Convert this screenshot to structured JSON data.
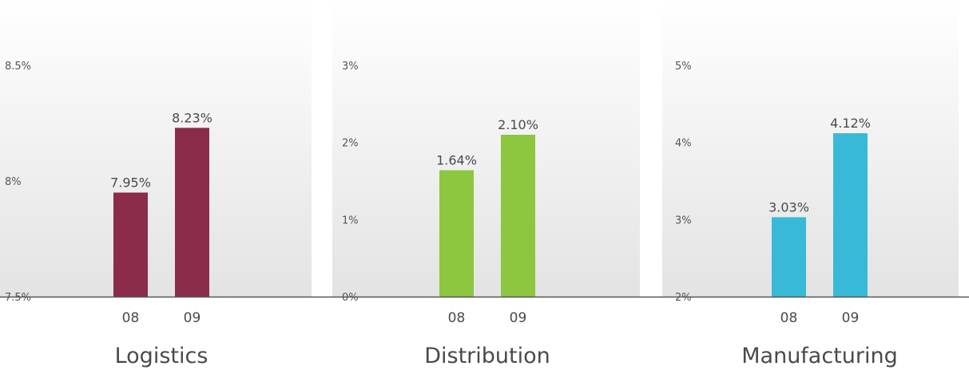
{
  "chart_data": [
    {
      "type": "bar",
      "title": "Logistics",
      "categories": [
        "08",
        "09"
      ],
      "values": [
        7.95,
        8.23
      ],
      "value_labels": [
        "7.95%",
        "8.23%"
      ],
      "yticks": [
        "7.5%",
        "8%",
        "8.5%"
      ],
      "ylim": [
        7.5,
        8.5
      ],
      "color": "#8b2c4b",
      "grid": false
    },
    {
      "type": "bar",
      "title": "Distribution",
      "categories": [
        "08",
        "09"
      ],
      "values": [
        1.64,
        2.1
      ],
      "value_labels": [
        "1.64%",
        "2.10%"
      ],
      "yticks": [
        "0%",
        "1%",
        "2%",
        "3%"
      ],
      "ylim": [
        0,
        3
      ],
      "color": "#8dc63f",
      "grid": false
    },
    {
      "type": "bar",
      "title": "Manufacturing",
      "categories": [
        "08",
        "09"
      ],
      "values": [
        3.03,
        4.12
      ],
      "value_labels": [
        "3.03%",
        "4.12%"
      ],
      "yticks": [
        "2%",
        "3%",
        "4%",
        "5%"
      ],
      "ylim": [
        2,
        5
      ],
      "color": "#38b9d8",
      "grid": false
    }
  ]
}
